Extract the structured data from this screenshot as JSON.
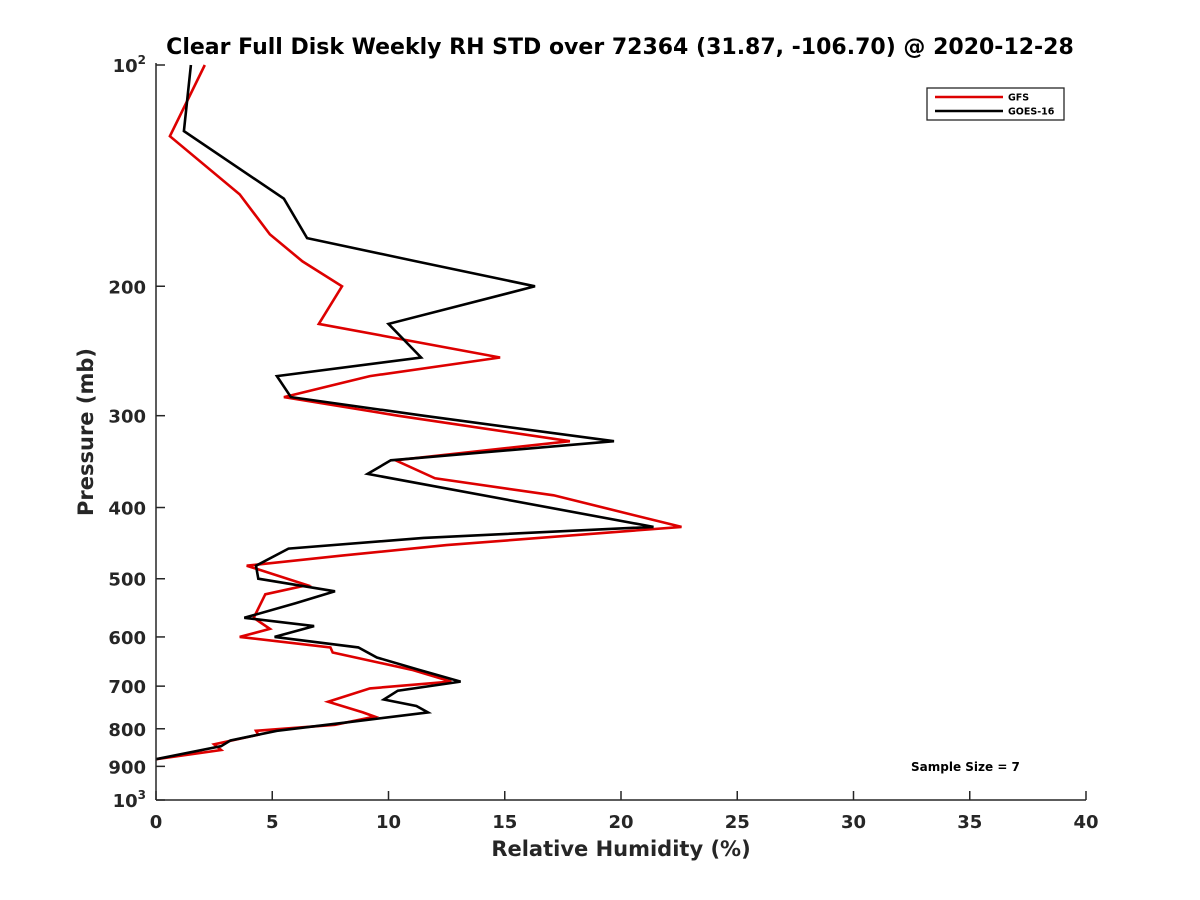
{
  "chart_data": {
    "type": "line",
    "title": "Clear Full Disk Weekly RH STD over 72364 (31.87, -106.70) @ 2020-12-28",
    "xlabel": "Relative Humidity (%)",
    "ylabel": "Pressure (mb)",
    "xlim": [
      0,
      40
    ],
    "ylim": [
      1000,
      100
    ],
    "yscale": "log",
    "x_ticks": [
      "0",
      "5",
      "10",
      "15",
      "20",
      "25",
      "30",
      "35",
      "40"
    ],
    "y_ticks": [
      {
        "value": 100,
        "base": "10",
        "exp": "2"
      },
      {
        "value": 200,
        "label": "200"
      },
      {
        "value": 300,
        "label": "300"
      },
      {
        "value": 400,
        "label": "400"
      },
      {
        "value": 500,
        "label": "500"
      },
      {
        "value": 600,
        "label": "600"
      },
      {
        "value": 700,
        "label": "700"
      },
      {
        "value": 800,
        "label": "800"
      },
      {
        "value": 900,
        "label": "900"
      },
      {
        "value": 1000,
        "base": "10",
        "exp": "3"
      }
    ],
    "grid": false,
    "legend_position": "top-right",
    "annotation": "Sample Size = 7",
    "series": [
      {
        "name": "GFS",
        "color": "#dd0000",
        "points": [
          [
            2.1,
            100
          ],
          [
            0.6,
            125
          ],
          [
            3.6,
            150
          ],
          [
            4.9,
            170
          ],
          [
            6.3,
            185
          ],
          [
            8.0,
            200
          ],
          [
            7.0,
            225
          ],
          [
            14.8,
            250
          ],
          [
            9.2,
            265
          ],
          [
            5.5,
            283
          ],
          [
            10.4,
            300
          ],
          [
            17.8,
            325
          ],
          [
            10.3,
            345
          ],
          [
            12.0,
            365
          ],
          [
            17.1,
            385
          ],
          [
            22.6,
            425
          ],
          [
            12.5,
            450
          ],
          [
            8.0,
            465
          ],
          [
            3.9,
            480
          ],
          [
            6.5,
            510
          ],
          [
            4.7,
            525
          ],
          [
            4.2,
            565
          ],
          [
            4.9,
            585
          ],
          [
            3.6,
            600
          ],
          [
            7.5,
            620
          ],
          [
            7.6,
            630
          ],
          [
            11.0,
            665
          ],
          [
            12.7,
            690
          ],
          [
            9.2,
            705
          ],
          [
            7.4,
            735
          ],
          [
            8.9,
            760
          ],
          [
            9.4,
            770
          ],
          [
            7.7,
            790
          ],
          [
            4.3,
            805
          ],
          [
            4.4,
            815
          ],
          [
            2.5,
            840
          ],
          [
            2.8,
            855
          ],
          [
            0.0,
            880
          ]
        ]
      },
      {
        "name": "GOES-16",
        "color": "#000000",
        "points": [
          [
            1.5,
            100
          ],
          [
            1.2,
            123
          ],
          [
            5.5,
            152
          ],
          [
            6.5,
            172
          ],
          [
            11.2,
            185
          ],
          [
            16.3,
            200
          ],
          [
            10.0,
            225
          ],
          [
            11.4,
            250
          ],
          [
            5.2,
            265
          ],
          [
            5.8,
            283
          ],
          [
            11.5,
            300
          ],
          [
            19.7,
            325
          ],
          [
            10.1,
            345
          ],
          [
            9.1,
            360
          ],
          [
            21.4,
            425
          ],
          [
            11.5,
            440
          ],
          [
            5.7,
            455
          ],
          [
            4.3,
            480
          ],
          [
            4.4,
            500
          ],
          [
            7.7,
            520
          ],
          [
            6.0,
            540
          ],
          [
            3.8,
            565
          ],
          [
            6.8,
            580
          ],
          [
            5.1,
            600
          ],
          [
            8.7,
            620
          ],
          [
            9.5,
            640
          ],
          [
            11.3,
            665
          ],
          [
            13.1,
            690
          ],
          [
            10.4,
            710
          ],
          [
            9.8,
            730
          ],
          [
            11.2,
            745
          ],
          [
            11.7,
            760
          ],
          [
            8.1,
            785
          ],
          [
            5.2,
            805
          ],
          [
            3.2,
            830
          ],
          [
            2.8,
            845
          ],
          [
            0.0,
            880
          ]
        ]
      }
    ]
  }
}
